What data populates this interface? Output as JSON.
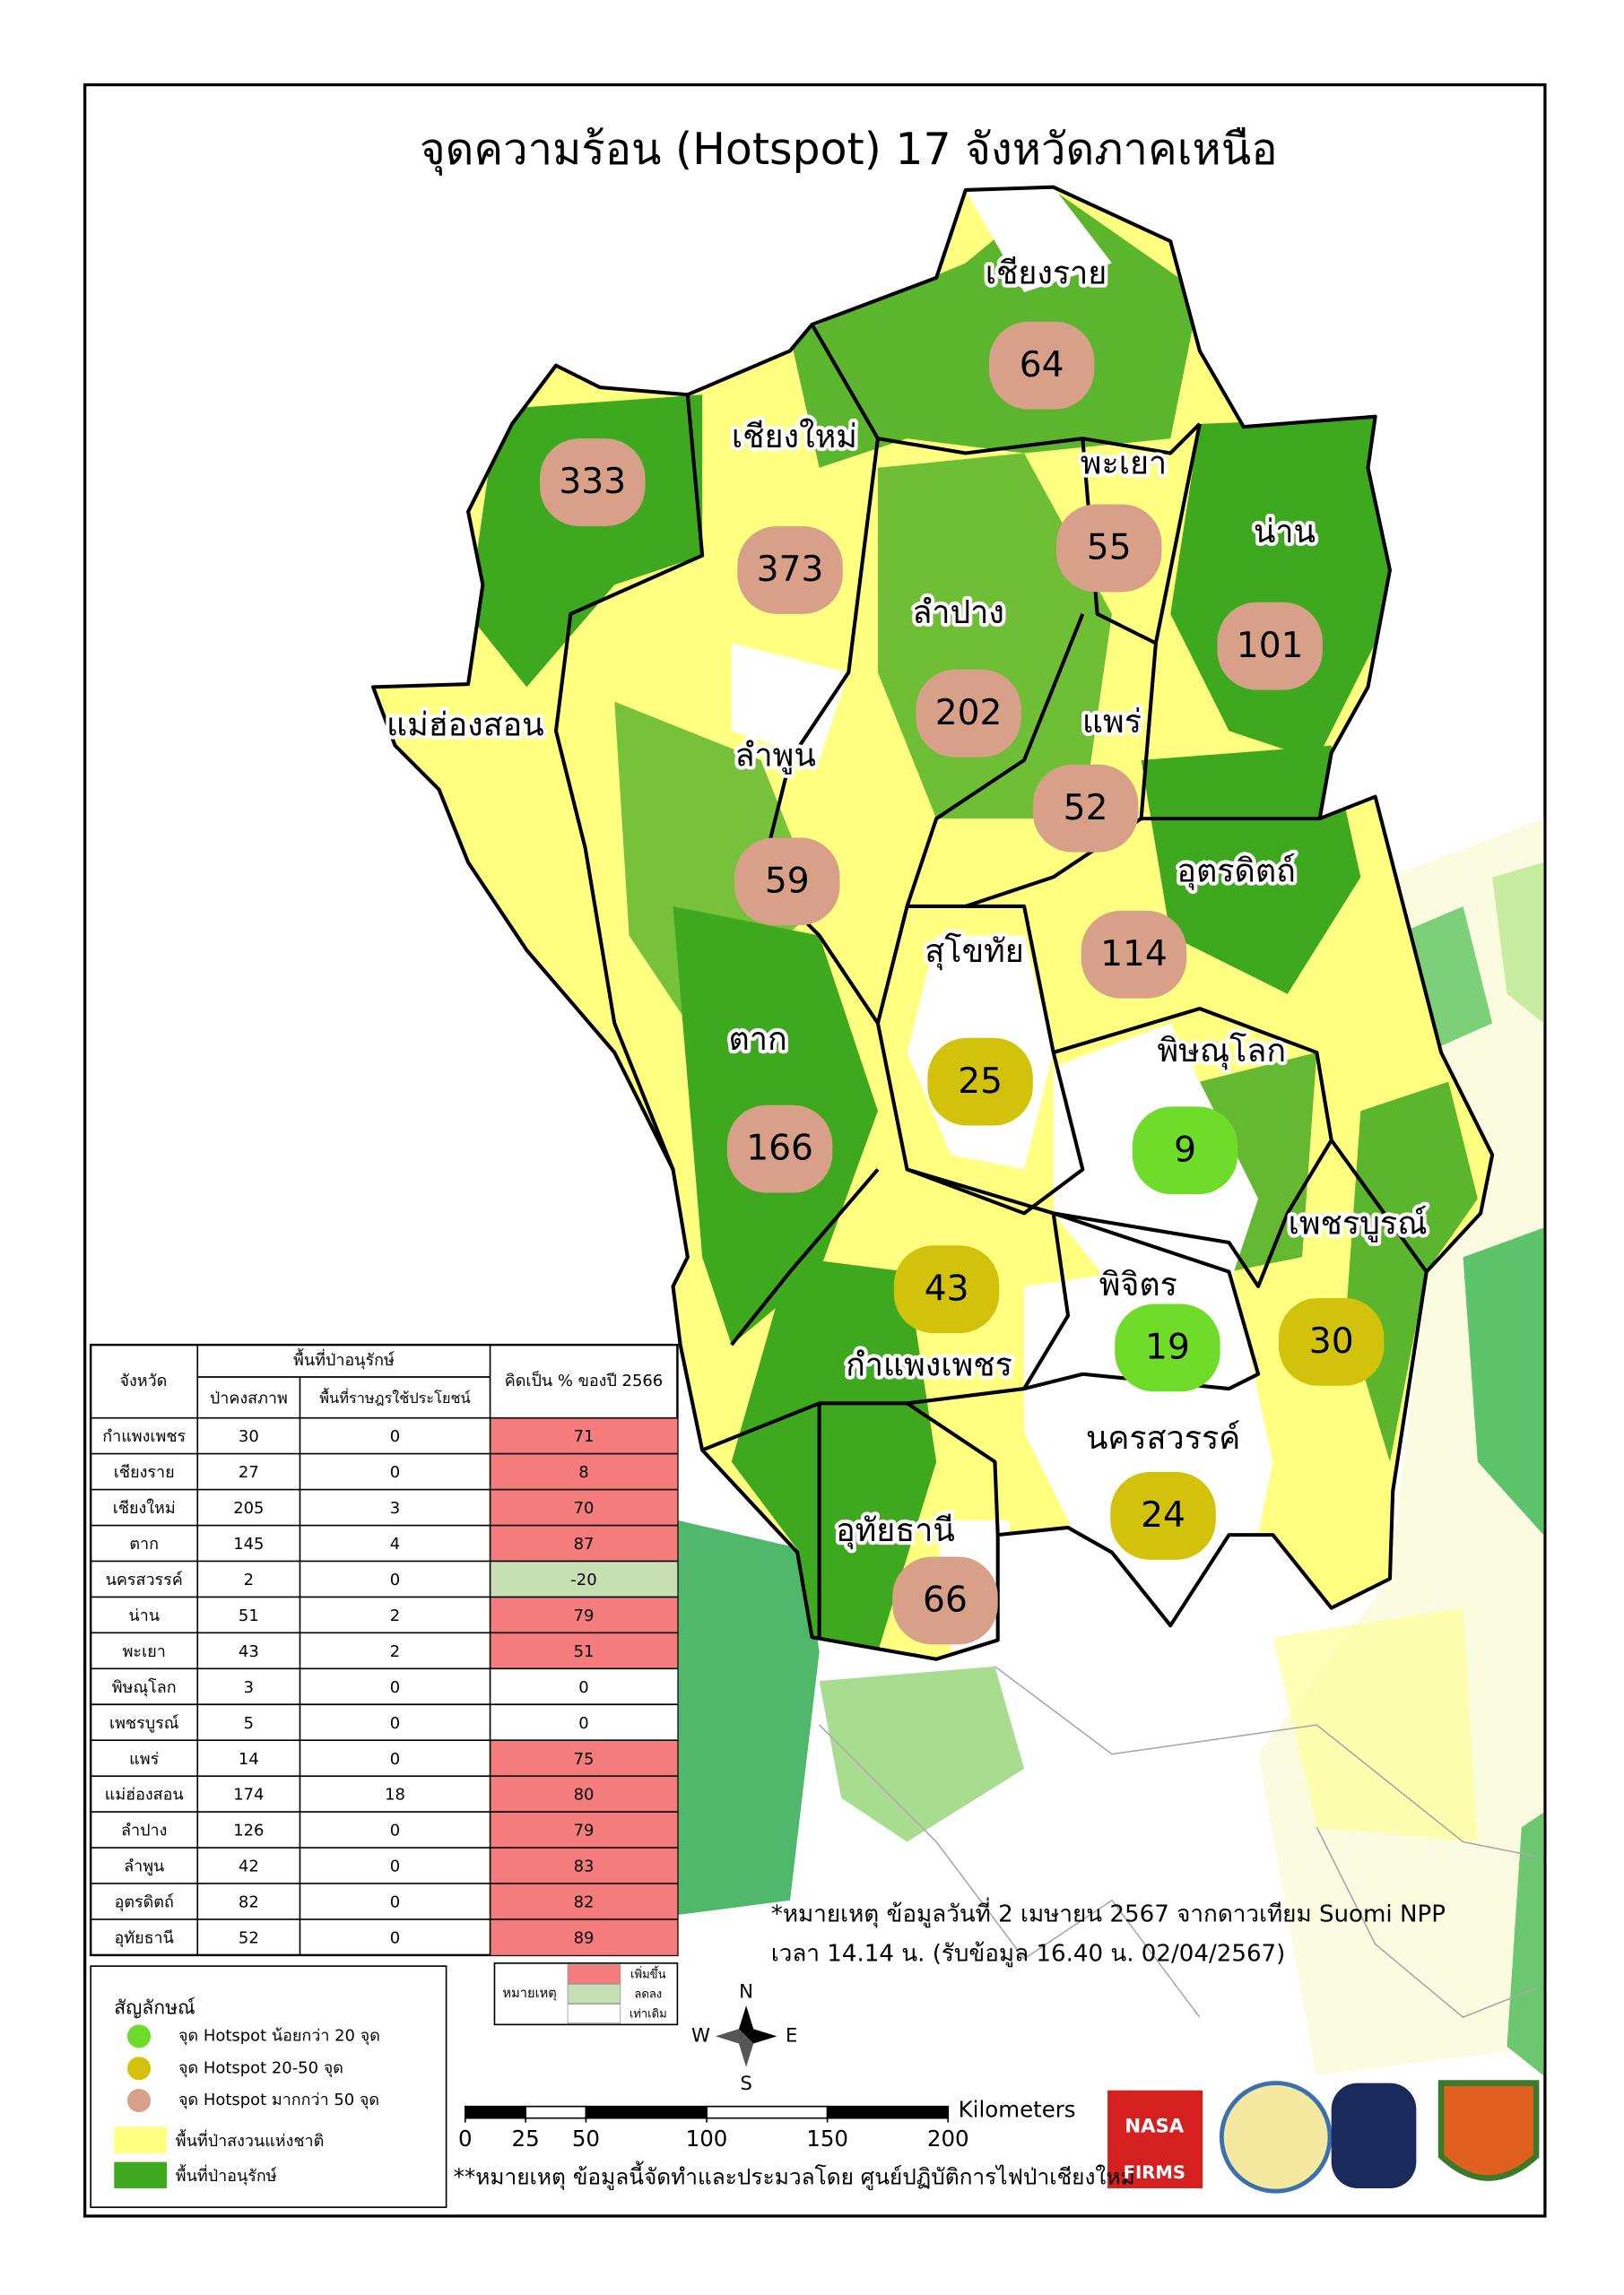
{
  "title": "จุดความร้อน (Hotspot) 17 จังหวัดภาคเหนือ",
  "provinces": [
    {
      "name": "เชียงราย",
      "hotspots": 64,
      "color": "#d8a088"
    },
    {
      "name": "เชียงใหม่",
      "hotspots": 373,
      "color": "#d8a088"
    },
    {
      "name": "แม่ฮ่องสอน",
      "hotspots": 333,
      "color": "#d8a088"
    },
    {
      "name": "พะเยา",
      "hotspots": 55,
      "color": "#d8a088"
    },
    {
      "name": "น่าน",
      "hotspots": 101,
      "color": "#d8a088"
    },
    {
      "name": "ลำปาง",
      "hotspots": 202,
      "color": "#d8a088"
    },
    {
      "name": "แพร่",
      "hotspots": 52,
      "color": "#d8a088"
    },
    {
      "name": "ลำพูน",
      "hotspots": 59,
      "color": "#d8a088"
    },
    {
      "name": "อุตรดิตถ์",
      "hotspots": 114,
      "color": "#d8a088"
    },
    {
      "name": "สุโขทัย",
      "hotspots": 25,
      "color": "#d2c20c"
    },
    {
      "name": "พิษณุโลก",
      "hotspots": 9,
      "color": "#6fdc2a"
    },
    {
      "name": "ตาก",
      "hotspots": 166,
      "color": "#d8a088"
    },
    {
      "name": "เพชรบูรณ์",
      "hotspots": 30,
      "color": "#d2c20c"
    },
    {
      "name": "กำแพงเพชร",
      "hotspots": 43,
      "color": "#d2c20c"
    },
    {
      "name": "พิจิตร",
      "hotspots": 19,
      "color": "#6fdc2a"
    },
    {
      "name": "นครสวรรค์",
      "hotspots": 24,
      "color": "#d2c20c"
    },
    {
      "name": "อุทัยธานี",
      "hotspots": 66,
      "color": "#d8a088"
    }
  ],
  "table": {
    "header": {
      "province": "จังหวัด",
      "group": "พื้นที่ป่าอนุรักษ์",
      "col1": "ป่าคงสภาพ",
      "col2": "พื้นที่ราษฎรใช้ประโยชน์",
      "col3": "คิดเป็น % ของปี 2566"
    },
    "rows": [
      [
        "กำแพงเพชร",
        30,
        0,
        71
      ],
      [
        "เชียงราย",
        27,
        0,
        8
      ],
      [
        "เชียงใหม่",
        205,
        3,
        70
      ],
      [
        "ตาก",
        145,
        4,
        87
      ],
      [
        "นครสวรรค์",
        2,
        0,
        -20
      ],
      [
        "น่าน",
        51,
        2,
        79
      ],
      [
        "พะเยา",
        43,
        2,
        51
      ],
      [
        "พิษณุโลก",
        3,
        0,
        0
      ],
      [
        "เพชรบูรณ์",
        5,
        0,
        0
      ],
      [
        "แพร่",
        14,
        0,
        75
      ],
      [
        "แม่ฮ่องสอน",
        174,
        18,
        80
      ],
      [
        "ลำปาง",
        126,
        0,
        79
      ],
      [
        "ลำพูน",
        42,
        0,
        83
      ],
      [
        "อุตรดิตถ์",
        82,
        0,
        82
      ],
      [
        "อุทัยธานี",
        52,
        0,
        89
      ]
    ]
  },
  "change_legend": {
    "title": "หมายเหตุ",
    "items": [
      {
        "label": "เพิ่มขึ้น",
        "color": "#f47c7c"
      },
      {
        "label": "ลดลง",
        "color": "#c6e0b4"
      },
      {
        "label": "เท่าเดิม",
        "color": "#ffffff"
      }
    ]
  },
  "legend": {
    "title": "สัญลักษณ์",
    "items": [
      {
        "label": "จุด Hotspot น้อยกว่า 20 จุด",
        "color": "#6fdc2a"
      },
      {
        "label": "จุด Hotspot 20-50 จุด",
        "color": "#d2c20c"
      },
      {
        "label": "จุด Hotspot มากกว่า 50 จุด",
        "color": "#d8a088"
      },
      {
        "label": "พื้นที่ป่าสงวนแห่งชาติ",
        "color": "#ffff80"
      },
      {
        "label": "พื้นที่ป่าอนุรักษ์",
        "color": "#3ea81e"
      }
    ]
  },
  "notes": [
    "*หมายเหตุ ข้อมูลวันที่ 2 เมษายน 2567 จากดาวเทียม Suomi NPP",
    "เวลา 14.14 น. (รับข้อมูล 16.40 น. 02/04/2567)",
    "**หมายเหตุ ข้อมูลนี้จัดทำและประมวลโดย ศูนย์ปฏิบัติการไฟป่าเชียงใหม่"
  ],
  "scale_bar": {
    "unit": "Kilometers",
    "xlim": [
      0,
      200
    ],
    "ticks": [
      0,
      25,
      50,
      100,
      150,
      200
    ]
  },
  "compass": {
    "n": "N",
    "e": "E",
    "s": "S",
    "w": "W"
  },
  "logos": [
    "NASA",
    "FIRMS"
  ]
}
